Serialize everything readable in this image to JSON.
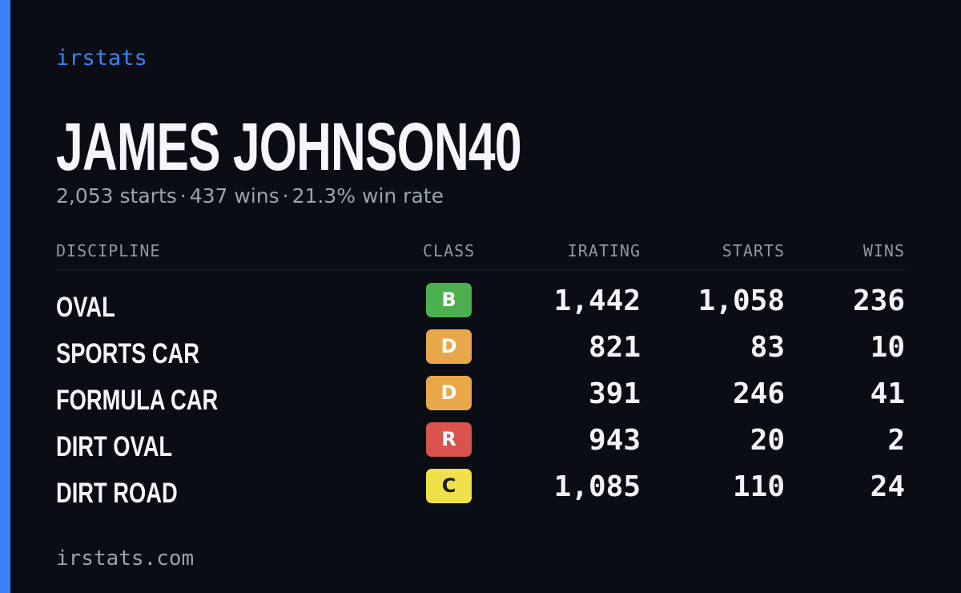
{
  "theme": {
    "accent": "#3b82f6",
    "background": "#0a0d14"
  },
  "brand": "irstats",
  "player": {
    "name": "JAMES JOHNSON40",
    "starts": "2,053 starts",
    "wins": "437 wins",
    "win_rate": "21.3% win rate",
    "separator": "·"
  },
  "table": {
    "headers": {
      "discipline": "DISCIPLINE",
      "class": "CLASS",
      "irating": "IRATING",
      "starts": "STARTS",
      "wins": "WINS"
    },
    "rows": [
      {
        "discipline": "OVAL",
        "class": "B",
        "class_color": "#4caf50",
        "class_text_color": "#ffffff",
        "irating": "1,442",
        "starts": "1,058",
        "wins": "236"
      },
      {
        "discipline": "SPORTS CAR",
        "class": "D",
        "class_color": "#e8a84a",
        "class_text_color": "#ffffff",
        "irating": "821",
        "starts": "83",
        "wins": "10"
      },
      {
        "discipline": "FORMULA CAR",
        "class": "D",
        "class_color": "#e8a84a",
        "class_text_color": "#ffffff",
        "irating": "391",
        "starts": "246",
        "wins": "41"
      },
      {
        "discipline": "DIRT OVAL",
        "class": "R",
        "class_color": "#d9534f",
        "class_text_color": "#ffffff",
        "irating": "943",
        "starts": "20",
        "wins": "2"
      },
      {
        "discipline": "DIRT ROAD",
        "class": "C",
        "class_color": "#f0e04a",
        "class_text_color": "#1a1a1a",
        "irating": "1,085",
        "starts": "110",
        "wins": "24"
      }
    ]
  },
  "footer": "irstats.com"
}
